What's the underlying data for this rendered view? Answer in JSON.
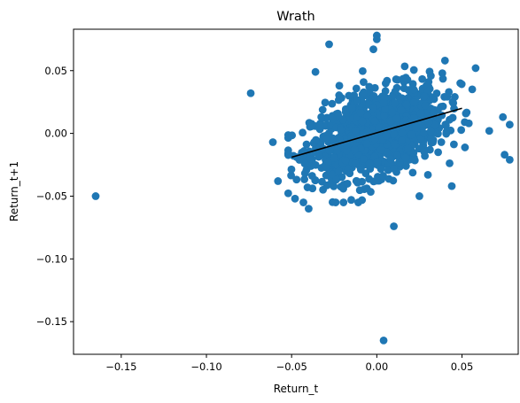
{
  "chart_data": {
    "type": "scatter",
    "title": "Wrath",
    "xlabel": "Return_t",
    "ylabel": "Return_t+1",
    "xlim": [
      -0.178,
      0.083
    ],
    "ylim": [
      -0.176,
      0.083
    ],
    "x_ticks": [
      -0.15,
      -0.1,
      -0.05,
      0.0,
      0.05
    ],
    "x_tick_labels": [
      "−0.15",
      "−0.10",
      "−0.05",
      "0.00",
      "0.05"
    ],
    "y_ticks": [
      0.05,
      0.0,
      -0.05,
      -0.1,
      -0.15
    ],
    "y_tick_labels": [
      "0.05",
      "0.00",
      "−0.05",
      "−0.10",
      "−0.15"
    ],
    "grid": false,
    "point_color": "#1f77b4",
    "line_color": "#000000",
    "regression_line": {
      "x": [
        -0.05,
        0.05
      ],
      "y": [
        -0.019,
        0.02
      ]
    },
    "outliers": [
      {
        "x": -0.165,
        "y": -0.05
      },
      {
        "x": -0.074,
        "y": 0.032
      },
      {
        "x": 0.004,
        "y": -0.165
      },
      {
        "x": 0.01,
        "y": -0.074
      },
      {
        "x": 0.0,
        "y": 0.078
      },
      {
        "x": 0.0,
        "y": 0.075
      },
      {
        "x": -0.028,
        "y": 0.071
      },
      {
        "x": -0.002,
        "y": 0.067
      },
      {
        "x": 0.058,
        "y": 0.052
      },
      {
        "x": 0.04,
        "y": 0.058
      },
      {
        "x": 0.074,
        "y": 0.013
      },
      {
        "x": 0.066,
        "y": 0.002
      },
      {
        "x": 0.078,
        "y": 0.007
      },
      {
        "x": 0.075,
        "y": -0.017
      },
      {
        "x": 0.078,
        "y": -0.021
      },
      {
        "x": -0.061,
        "y": -0.007
      },
      {
        "x": -0.058,
        "y": -0.038
      },
      {
        "x": -0.04,
        "y": -0.06
      },
      {
        "x": -0.015,
        "y": -0.053
      },
      {
        "x": 0.025,
        "y": -0.05
      },
      {
        "x": 0.044,
        "y": -0.042
      },
      {
        "x": 0.049,
        "y": 0.04
      },
      {
        "x": 0.054,
        "y": 0.008
      },
      {
        "x": -0.036,
        "y": 0.049
      },
      {
        "x": -0.048,
        "y": -0.052
      },
      {
        "x": 0.03,
        "y": -0.033
      },
      {
        "x": -0.022,
        "y": 0.038
      },
      {
        "x": 0.036,
        "y": -0.015
      }
    ],
    "cluster": {
      "n_points": 1300,
      "x_mean": 0.0,
      "x_std": 0.019,
      "x_range": [
        -0.052,
        0.056
      ],
      "y_intercept": 0.0005,
      "y_slope": 0.39,
      "y_resid_std": 0.016,
      "y_range": [
        -0.055,
        0.055
      ]
    }
  }
}
